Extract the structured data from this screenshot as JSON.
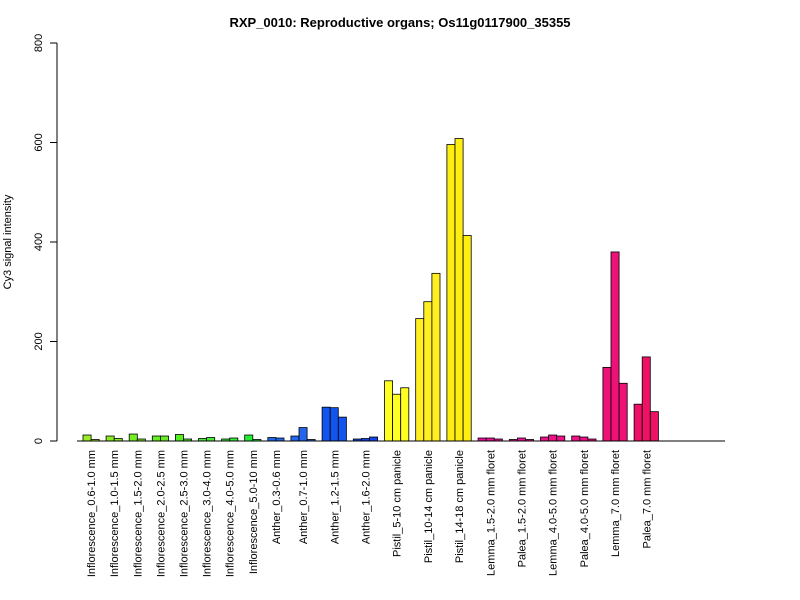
{
  "chart_data": {
    "type": "bar",
    "title": "RXP_0010: Reproductive organs; Os11g0117900_35355",
    "xlabel": "",
    "ylabel": "Cy3 signal intensity",
    "ylim": [
      0,
      800
    ],
    "yticks": [
      0,
      200,
      400,
      600,
      800
    ],
    "groups": [
      {
        "label": "Inflorescence_0.6-1.0 mm",
        "color": "#99ee22",
        "values": [
          12,
          3
        ]
      },
      {
        "label": "Inflorescence_1.0-1.5 mm",
        "color": "#88ee22",
        "values": [
          10,
          5
        ]
      },
      {
        "label": "Inflorescence_1.5-2.0 mm",
        "color": "#77ee22",
        "values": [
          14,
          4
        ]
      },
      {
        "label": "Inflorescence_2.0-2.5 mm",
        "color": "#66ee22",
        "values": [
          10,
          10
        ]
      },
      {
        "label": "Inflorescence_2.5-3.0 mm",
        "color": "#55ee22",
        "values": [
          13,
          4
        ]
      },
      {
        "label": "Inflorescence_3.0-4.0 mm",
        "color": "#44ee33",
        "values": [
          5,
          7
        ]
      },
      {
        "label": "Inflorescence_4.0-5.0 mm",
        "color": "#33ee33",
        "values": [
          4,
          6
        ]
      },
      {
        "label": "Inflorescence_5.0-10 mm",
        "color": "#22ee33",
        "values": [
          12,
          3
        ]
      },
      {
        "label": "Anther_0.3-0.6 mm",
        "color": "#2266ee",
        "values": [
          7,
          6
        ]
      },
      {
        "label": "Anther_0.7-1.0 mm",
        "color": "#2266ee",
        "values": [
          10,
          27,
          3
        ]
      },
      {
        "label": "Anther_1.2-1.5 mm",
        "color": "#1155ee",
        "values": [
          68,
          67,
          48
        ]
      },
      {
        "label": "Anther_1.6-2.0 mm",
        "color": "#1144ee",
        "values": [
          4,
          5,
          8
        ]
      },
      {
        "label": "Pistil_5-10 cm panicle",
        "color": "#ffff22",
        "values": [
          121,
          94,
          107
        ]
      },
      {
        "label": "Pistil_10-14 cm panicle",
        "color": "#ffee22",
        "values": [
          246,
          280,
          337
        ]
      },
      {
        "label": "Pistil_14-18 cm panicle",
        "color": "#ffee11",
        "values": [
          596,
          608,
          413
        ]
      },
      {
        "label": "Lemma_1.5-2.0 mm floret",
        "color": "#ee1199",
        "values": [
          6,
          6,
          4
        ]
      },
      {
        "label": "Palea_1.5-2.0 mm floret",
        "color": "#ee1199",
        "values": [
          3,
          6,
          3
        ]
      },
      {
        "label": "Lemma_4.0-5.0 mm floret",
        "color": "#ee1188",
        "values": [
          8,
          12,
          10
        ]
      },
      {
        "label": "Palea_4.0-5.0 mm floret",
        "color": "#ee1188",
        "values": [
          10,
          8,
          4
        ]
      },
      {
        "label": "Lemma_7.0 mm floret",
        "color": "#ee1177",
        "values": [
          148,
          380,
          116
        ]
      },
      {
        "label": "Palea_7.0 mm floret",
        "color": "#ee1166",
        "values": [
          74,
          169,
          59
        ]
      }
    ]
  }
}
